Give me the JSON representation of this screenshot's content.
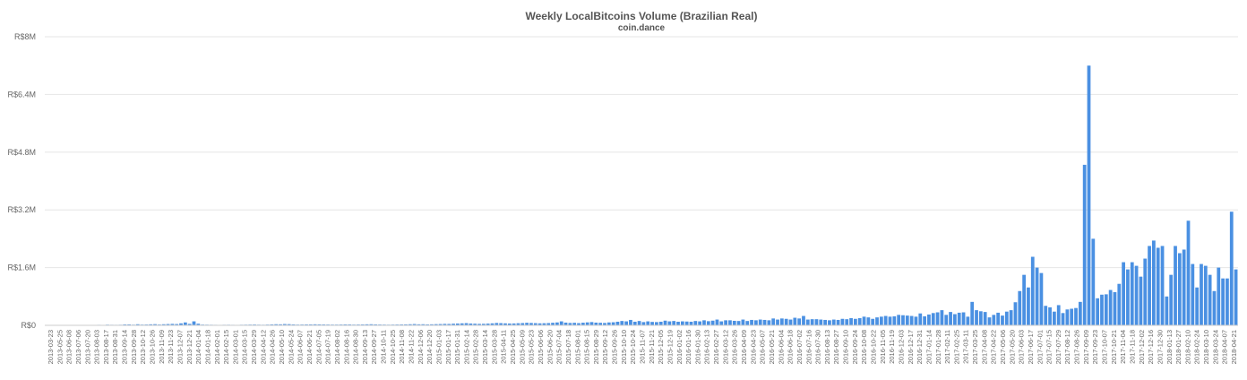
{
  "chart_data": {
    "type": "bar",
    "title": "Weekly LocalBitcoins Volume (Brazilian Real)",
    "subtitle": "coin.dance",
    "ylim": [
      0,
      8000000
    ],
    "yticks": [
      {
        "value": 0,
        "label": "R$0"
      },
      {
        "value": 1600000,
        "label": "R$1.6M"
      },
      {
        "value": 3200000,
        "label": "R$3.2M"
      },
      {
        "value": 4800000,
        "label": "R$4.8M"
      },
      {
        "value": 6400000,
        "label": "R$6.4M"
      },
      {
        "value": 8000000,
        "label": "R$8M"
      }
    ],
    "x_labels": [
      "2013-03-23",
      "2013-05-25",
      "2013-06-08",
      "2013-07-06",
      "2013-07-20",
      "2013-08-03",
      "2013-08-17",
      "2013-08-31",
      "2013-09-14",
      "2013-09-28",
      "2013-10-12",
      "2013-10-26",
      "2013-11-09",
      "2013-11-23",
      "2013-12-07",
      "2013-12-21",
      "2014-01-04",
      "2014-01-18",
      "2014-02-01",
      "2014-02-15",
      "2014-03-01",
      "2014-03-15",
      "2014-03-29",
      "2014-04-12",
      "2014-04-26",
      "2014-05-10",
      "2014-05-24",
      "2014-06-07",
      "2014-06-21",
      "2014-07-05",
      "2014-07-19",
      "2014-08-02",
      "2014-08-16",
      "2014-08-30",
      "2014-09-13",
      "2014-09-27",
      "2014-10-11",
      "2014-10-25",
      "2014-11-08",
      "2014-11-22",
      "2014-12-06",
      "2014-12-20",
      "2015-01-03",
      "2015-01-17",
      "2015-01-31",
      "2015-02-14",
      "2015-02-28",
      "2015-03-14",
      "2015-03-28",
      "2015-04-11",
      "2015-04-25",
      "2015-05-09",
      "2015-05-23",
      "2015-06-06",
      "2015-06-20",
      "2015-07-04",
      "2015-07-18",
      "2015-08-01",
      "2015-08-15",
      "2015-08-29",
      "2015-09-12",
      "2015-09-26",
      "2015-10-10",
      "2015-10-24",
      "2015-11-07",
      "2015-11-21",
      "2015-12-05",
      "2015-12-19",
      "2016-01-02",
      "2016-01-16",
      "2016-01-30",
      "2016-02-13",
      "2016-02-27",
      "2016-03-12",
      "2016-03-26",
      "2016-04-09",
      "2016-04-23",
      "2016-05-07",
      "2016-05-21",
      "2016-06-04",
      "2016-06-18",
      "2016-07-02",
      "2016-07-16",
      "2016-07-30",
      "2016-08-13",
      "2016-08-27",
      "2016-09-10",
      "2016-09-24",
      "2016-10-08",
      "2016-10-22",
      "2016-11-05",
      "2016-11-19",
      "2016-12-03",
      "2016-12-17",
      "2016-12-31",
      "2017-01-14",
      "2017-01-28",
      "2017-02-11",
      "2017-02-25",
      "2017-03-11",
      "2017-03-25",
      "2017-04-08",
      "2017-04-22",
      "2017-05-06",
      "2017-05-20",
      "2017-06-03",
      "2017-06-17",
      "2017-07-01",
      "2017-07-15",
      "2017-07-29",
      "2017-08-12",
      "2017-08-26",
      "2017-09-09",
      "2017-09-23",
      "2017-10-07",
      "2017-10-21",
      "2017-11-04",
      "2017-11-18",
      "2017-12-02",
      "2017-12-16",
      "2017-12-30",
      "2018-01-13",
      "2018-01-27",
      "2018-02-10",
      "2018-02-24",
      "2018-03-10",
      "2018-03-24",
      "2018-04-07",
      "2018-04-21"
    ],
    "values": [
      5000,
      4000,
      8000,
      5000,
      4000,
      5000,
      6000,
      9000,
      5000,
      8000,
      12000,
      10000,
      14000,
      12000,
      18000,
      15000,
      14000,
      16000,
      24000,
      25000,
      18000,
      30000,
      20000,
      22000,
      28000,
      32000,
      22000,
      30000,
      35000,
      40000,
      35000,
      55000,
      80000,
      40000,
      110000,
      45000,
      20000,
      18000,
      16000,
      14000,
      13000,
      15000,
      16000,
      14000,
      13000,
      16000,
      18000,
      20000,
      22000,
      18000,
      16000,
      20000,
      25000,
      30000,
      28000,
      35000,
      32000,
      25000,
      20000,
      22000,
      24000,
      25000,
      28000,
      26000,
      24000,
      22000,
      20000,
      20000,
      22000,
      25000,
      24000,
      20000,
      22000,
      24000,
      28000,
      30000,
      25000,
      22000,
      20000,
      18000,
      20000,
      22000,
      24000,
      26000,
      30000,
      35000,
      28000,
      30000,
      25000,
      28000,
      32000,
      35000,
      40000,
      38000,
      45000,
      50000,
      55000,
      60000,
      50000,
      45000,
      40000,
      42000,
      48000,
      55000,
      65000,
      60000,
      55000,
      50000,
      52000,
      58000,
      62000,
      70000,
      65000,
      60000,
      55000,
      58000,
      62000,
      70000,
      80000,
      110000,
      75000,
      65000,
      70000,
      60000,
      72000,
      82000,
      90000,
      75000,
      70000,
      65000,
      80000,
      85000,
      100000,
      120000,
      110000,
      150000,
      100000,
      120000,
      90000,
      110000,
      95000,
      90000,
      100000,
      130000,
      110000,
      120000,
      100000,
      110000,
      105000,
      100000,
      120000,
      110000,
      140000,
      115000,
      130000,
      160000,
      110000,
      140000,
      140000,
      125000,
      120000,
      160000,
      120000,
      150000,
      140000,
      160000,
      150000,
      140000,
      190000,
      160000,
      190000,
      180000,
      160000,
      210000,
      190000,
      260000,
      160000,
      170000,
      170000,
      160000,
      150000,
      140000,
      160000,
      150000,
      180000,
      170000,
      200000,
      180000,
      200000,
      240000,
      220000,
      180000,
      220000,
      240000,
      260000,
      240000,
      250000,
      290000,
      280000,
      270000,
      260000,
      240000,
      330000,
      250000,
      300000,
      340000,
      360000,
      420000,
      290000,
      370000,
      310000,
      350000,
      360000,
      240000,
      650000,
      420000,
      390000,
      370000,
      220000,
      290000,
      350000,
      270000,
      380000,
      420000,
      640000,
      950000,
      1400000,
      1050000,
      1900000,
      1600000,
      1450000,
      540000,
      500000,
      380000,
      560000,
      340000,
      440000,
      460000,
      480000,
      650000,
      4450000,
      7200000,
      2400000,
      750000,
      850000,
      860000,
      980000,
      920000,
      1150000,
      1750000,
      1550000,
      1750000,
      1650000,
      1350000,
      1850000,
      2200000,
      2350000,
      2150000,
      2200000,
      800000,
      1400000,
      2200000,
      2000000,
      2100000,
      2900000,
      1700000,
      1050000,
      1700000,
      1650000,
      1400000,
      950000,
      1600000,
      1300000,
      1300000,
      3150000,
      1550000
    ]
  }
}
